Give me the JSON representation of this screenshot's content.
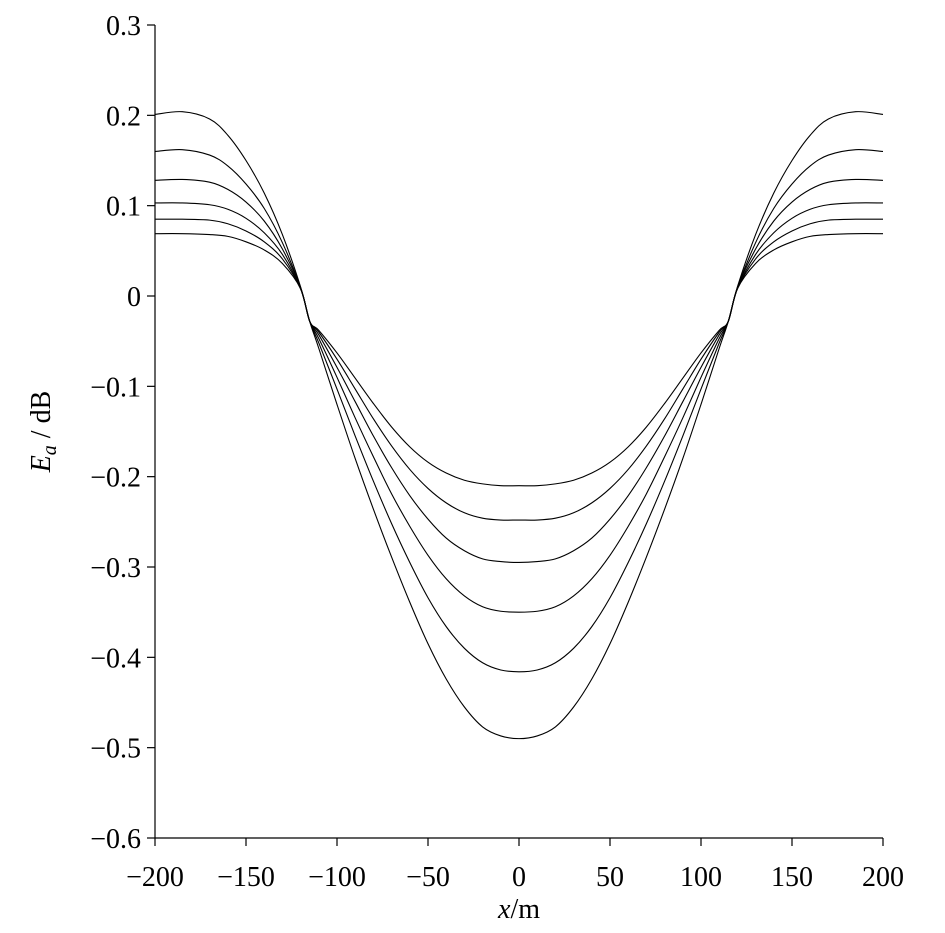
{
  "chart_data": {
    "type": "line",
    "xlabel": "x/m",
    "ylabel": "E_a / dB",
    "xlim": [
      -200,
      200
    ],
    "ylim": [
      -0.6,
      0.3
    ],
    "xticks": [
      -200,
      -150,
      -100,
      -50,
      0,
      50,
      100,
      150,
      200
    ],
    "xtick_labels": [
      "−200",
      "−150",
      "−100",
      "−50",
      "0",
      "50",
      "100",
      "150",
      "200"
    ],
    "yticks": [
      0.3,
      0.2,
      0.1,
      0,
      -0.1,
      -0.2,
      -0.3,
      -0.4,
      -0.5,
      -0.6
    ],
    "ytick_labels": [
      "0.3",
      "0.2",
      "0.1",
      "0",
      "−0.1",
      "−0.2",
      "−0.3",
      "−0.4",
      "−0.5",
      "−0.6"
    ],
    "grid": false,
    "legend": false,
    "x": [
      -200,
      -185,
      -170,
      -160,
      -150,
      -140,
      -130,
      -120,
      -115,
      -110,
      -100,
      -90,
      -80,
      -70,
      -60,
      -50,
      -40,
      -30,
      -20,
      -10,
      0,
      10,
      20,
      30,
      40,
      50,
      60,
      70,
      80,
      90,
      100,
      110,
      115,
      120,
      130,
      140,
      150,
      160,
      170,
      185,
      200
    ],
    "series": [
      {
        "values": [
          0.201,
          0.204,
          0.196,
          0.178,
          0.15,
          0.114,
          0.068,
          0.01,
          -0.028,
          -0.058,
          -0.12,
          -0.18,
          -0.236,
          -0.289,
          -0.339,
          -0.385,
          -0.424,
          -0.455,
          -0.477,
          -0.487,
          -0.49,
          -0.487,
          -0.477,
          -0.455,
          -0.424,
          -0.385,
          -0.339,
          -0.289,
          -0.236,
          -0.18,
          -0.12,
          -0.058,
          -0.028,
          0.01,
          0.068,
          0.114,
          0.15,
          0.178,
          0.196,
          0.204,
          0.201
        ]
      },
      {
        "values": [
          0.16,
          0.162,
          0.156,
          0.144,
          0.124,
          0.097,
          0.059,
          0.009,
          -0.028,
          -0.052,
          -0.103,
          -0.155,
          -0.205,
          -0.252,
          -0.295,
          -0.334,
          -0.366,
          -0.39,
          -0.406,
          -0.414,
          -0.416,
          -0.414,
          -0.406,
          -0.39,
          -0.366,
          -0.334,
          -0.295,
          -0.252,
          -0.205,
          -0.155,
          -0.103,
          -0.052,
          -0.028,
          0.009,
          0.059,
          0.097,
          0.124,
          0.144,
          0.156,
          0.162,
          0.16
        ]
      },
      {
        "values": [
          0.128,
          0.129,
          0.126,
          0.118,
          0.104,
          0.083,
          0.052,
          0.009,
          -0.028,
          -0.047,
          -0.09,
          -0.135,
          -0.178,
          -0.219,
          -0.255,
          -0.287,
          -0.313,
          -0.332,
          -0.344,
          -0.349,
          -0.35,
          -0.349,
          -0.344,
          -0.332,
          -0.313,
          -0.287,
          -0.255,
          -0.219,
          -0.178,
          -0.135,
          -0.09,
          -0.047,
          -0.028,
          0.009,
          0.052,
          0.083,
          0.104,
          0.118,
          0.126,
          0.129,
          0.128
        ]
      },
      {
        "values": [
          0.103,
          0.103,
          0.101,
          0.096,
          0.086,
          0.07,
          0.046,
          0.008,
          -0.028,
          -0.043,
          -0.079,
          -0.117,
          -0.155,
          -0.19,
          -0.221,
          -0.247,
          -0.268,
          -0.282,
          -0.291,
          -0.294,
          -0.295,
          -0.294,
          -0.291,
          -0.282,
          -0.268,
          -0.247,
          -0.221,
          -0.19,
          -0.155,
          -0.117,
          -0.079,
          -0.043,
          -0.028,
          0.008,
          0.046,
          0.07,
          0.086,
          0.096,
          0.101,
          0.103,
          0.103
        ]
      },
      {
        "values": [
          0.085,
          0.085,
          0.084,
          0.08,
          0.072,
          0.06,
          0.041,
          0.008,
          -0.028,
          -0.04,
          -0.07,
          -0.103,
          -0.136,
          -0.166,
          -0.192,
          -0.213,
          -0.229,
          -0.24,
          -0.246,
          -0.248,
          -0.248,
          -0.248,
          -0.246,
          -0.24,
          -0.229,
          -0.213,
          -0.192,
          -0.166,
          -0.136,
          -0.103,
          -0.07,
          -0.04,
          -0.028,
          0.008,
          0.041,
          0.06,
          0.072,
          0.08,
          0.084,
          0.085,
          0.085
        ]
      },
      {
        "values": [
          0.069,
          0.069,
          0.068,
          0.066,
          0.06,
          0.051,
          0.036,
          0.008,
          -0.028,
          -0.038,
          -0.063,
          -0.091,
          -0.119,
          -0.145,
          -0.167,
          -0.184,
          -0.196,
          -0.204,
          -0.208,
          -0.21,
          -0.21,
          -0.21,
          -0.208,
          -0.204,
          -0.196,
          -0.184,
          -0.167,
          -0.145,
          -0.119,
          -0.091,
          -0.063,
          -0.038,
          -0.028,
          0.008,
          0.036,
          0.051,
          0.06,
          0.066,
          0.068,
          0.069,
          0.069
        ]
      }
    ]
  }
}
